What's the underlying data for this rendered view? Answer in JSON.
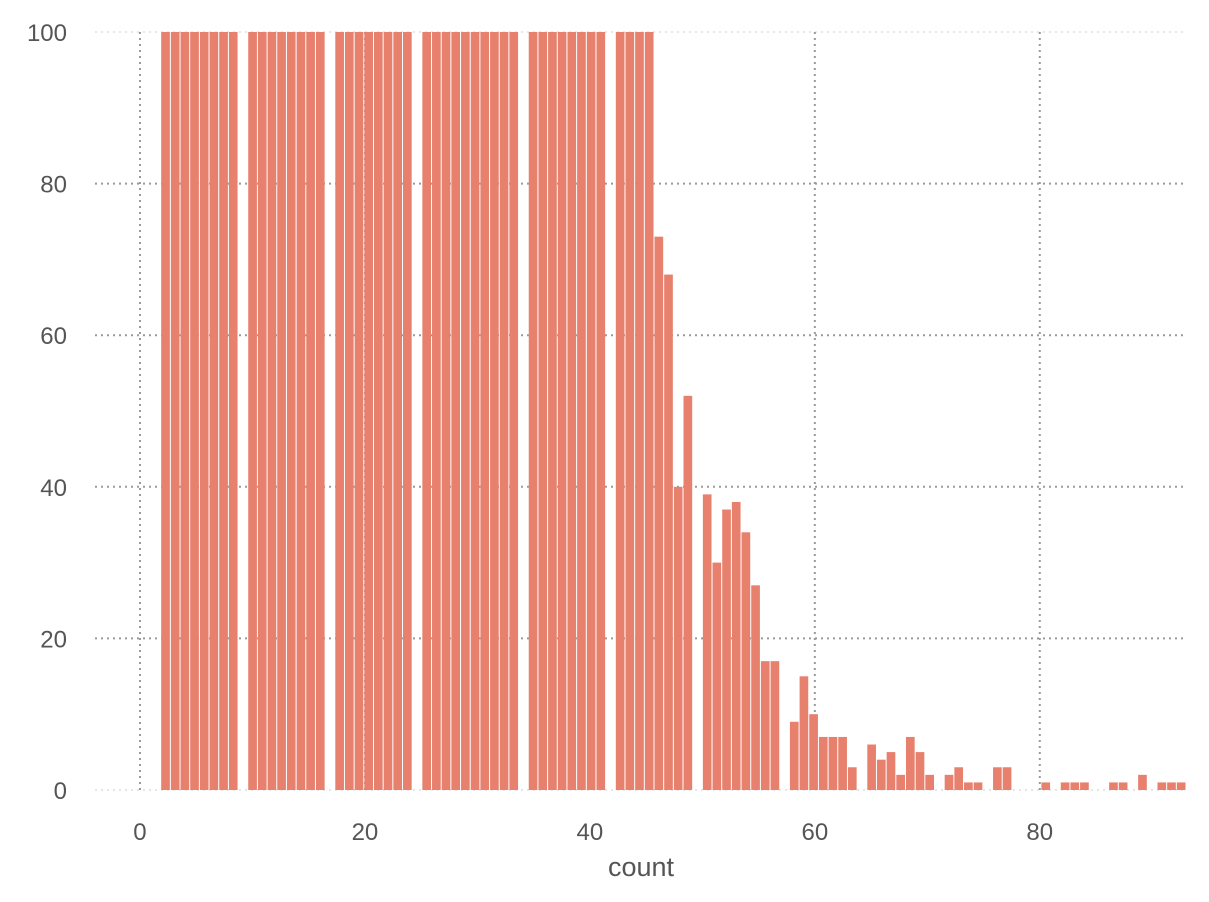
{
  "chart_data": {
    "type": "bar",
    "subtype": "histogram",
    "title": "",
    "xlabel": "count",
    "ylabel": "",
    "xlim": [
      -4,
      93
    ],
    "ylim": [
      0,
      100
    ],
    "xticks": [
      0,
      20,
      40,
      60,
      80
    ],
    "yticks": [
      0,
      20,
      40,
      60,
      80,
      100
    ],
    "grid": true,
    "bar_color": "#e8806e",
    "bin_width": 0.86,
    "bin_start": 0.98,
    "values": [
      0,
      100,
      100,
      100,
      100,
      100,
      100,
      100,
      100,
      0,
      100,
      100,
      100,
      100,
      100,
      100,
      100,
      100,
      0,
      100,
      100,
      100,
      100,
      100,
      100,
      100,
      100,
      0,
      100,
      100,
      100,
      100,
      100,
      100,
      100,
      100,
      100,
      100,
      0,
      100,
      100,
      100,
      100,
      100,
      100,
      100,
      100,
      0,
      100,
      100,
      100,
      100,
      73,
      68,
      40,
      52,
      0,
      39,
      30,
      37,
      38,
      34,
      27,
      17,
      17,
      0,
      9,
      15,
      10,
      7,
      7,
      7,
      3,
      0,
      6,
      4,
      5,
      2,
      7,
      5,
      2,
      0,
      2,
      3,
      1,
      1,
      0,
      3,
      3,
      0,
      0,
      0,
      1,
      0,
      1,
      1,
      1,
      0,
      0,
      1,
      1,
      0,
      2,
      0,
      1,
      1,
      1
    ]
  }
}
